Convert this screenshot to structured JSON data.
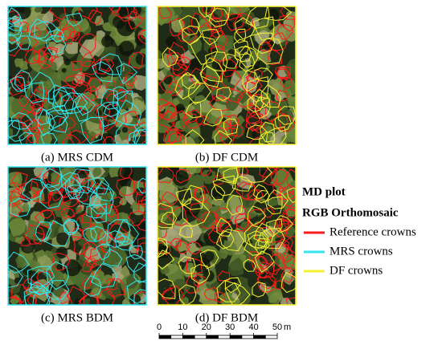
{
  "panels": [
    {
      "caption": "(a) MRS CDM"
    },
    {
      "caption": "(b) DF CDM"
    },
    {
      "caption": "(c) MRS BDM"
    },
    {
      "caption": "(d) DF BDM"
    }
  ],
  "legend": {
    "title": "MD plot",
    "subtitle": "RGB Orthomosaic",
    "items": [
      {
        "label": "Reference crowns",
        "color": "#ff1a1a"
      },
      {
        "label": "MRS crowns",
        "color": "#33e6f0"
      },
      {
        "label": "DF crowns",
        "color": "#f5f032"
      }
    ]
  },
  "scale_bar": {
    "ticks": [
      0,
      10,
      20,
      30,
      40,
      50
    ],
    "unit": "m"
  }
}
